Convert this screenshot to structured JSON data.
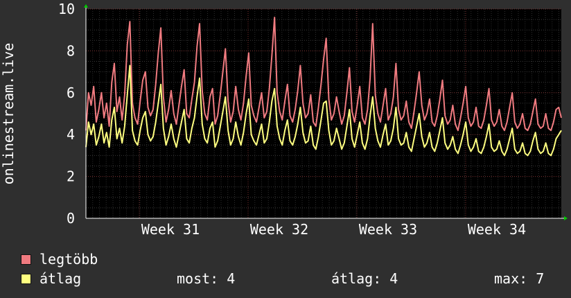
{
  "chart_data": {
    "type": "line",
    "ylabel": "onlinestream.live",
    "ylim": [
      0,
      10
    ],
    "yticks": [
      0,
      2,
      4,
      6,
      8,
      10
    ],
    "x_labels": [
      "Week 31",
      "Week 32",
      "Week 33",
      "Week 34"
    ],
    "grid": true,
    "legend_position": "bottom-left",
    "series": [
      {
        "name": "legtöbb",
        "color": "#f07b80",
        "values": [
          4.2,
          6.0,
          5.4,
          6.3,
          4.6,
          5.2,
          6.0,
          4.8,
          5.5,
          4.4,
          6.5,
          7.4,
          5.1,
          5.8,
          4.7,
          5.9,
          8.3,
          9.4,
          5.5,
          4.8,
          4.5,
          5.6,
          6.6,
          7.0,
          5.3,
          4.9,
          5.2,
          6.4,
          7.9,
          9.1,
          5.8,
          4.6,
          5.2,
          6.1,
          5.0,
          4.5,
          5.4,
          6.3,
          7.1,
          5.0,
          4.8,
          5.7,
          6.5,
          8.2,
          9.3,
          6.1,
          5.0,
          4.7,
          5.8,
          6.2,
          4.5,
          4.9,
          5.9,
          7.0,
          8.1,
          5.6,
          4.6,
          5.1,
          6.3,
          5.2,
          4.7,
          5.5,
          6.8,
          7.9,
          5.4,
          4.9,
          4.6,
          5.3,
          6.0,
          4.8,
          5.1,
          6.2,
          7.8,
          9.6,
          6.0,
          5.1,
          4.7,
          5.6,
          6.4,
          4.9,
          4.6,
          5.2,
          6.1,
          7.3,
          5.5,
          4.8,
          5.0,
          5.9,
          4.6,
          4.4,
          5.3,
          6.4,
          7.6,
          8.6,
          5.7,
          4.7,
          5.0,
          5.8,
          5.1,
          4.5,
          4.9,
          6.0,
          7.2,
          5.1,
          4.6,
          5.4,
          6.3,
          4.8,
          4.5,
          5.2,
          6.7,
          9.3,
          5.9,
          5.0,
          4.6,
          5.4,
          6.2,
          4.7,
          5.0,
          5.8,
          7.4,
          5.2,
          4.7,
          4.9,
          5.6,
          4.6,
          4.3,
          5.1,
          6.0,
          7.0,
          5.4,
          4.7,
          5.0,
          5.7,
          4.6,
          4.4,
          4.9,
          5.7,
          6.6,
          4.9,
          4.5,
          4.7,
          5.4,
          4.5,
          4.2,
          4.8,
          5.5,
          6.3,
          4.8,
          4.4,
          4.6,
          5.3,
          4.4,
          4.3,
          4.7,
          5.4,
          6.2,
          4.7,
          4.4,
          4.6,
          5.2,
          4.4,
          4.2,
          4.6,
          5.3,
          6.0,
          4.6,
          4.3,
          4.5,
          5.0,
          4.3,
          4.2,
          4.5,
          5.1,
          5.7,
          4.5,
          4.3,
          4.4,
          5.0,
          4.3,
          4.2,
          4.6,
          5.2,
          5.3,
          4.8
        ]
      },
      {
        "name": "átlag",
        "color": "#ffff80",
        "values": [
          3.4,
          4.6,
          4.0,
          4.5,
          3.5,
          3.9,
          4.5,
          3.6,
          4.1,
          3.4,
          4.7,
          5.3,
          3.8,
          4.3,
          3.6,
          4.4,
          5.9,
          7.3,
          4.2,
          3.7,
          3.5,
          4.2,
          4.8,
          5.1,
          4.0,
          3.7,
          3.9,
          4.6,
          5.5,
          6.4,
          4.3,
          3.5,
          3.9,
          4.5,
          3.8,
          3.4,
          4.0,
          4.6,
          5.2,
          3.8,
          3.6,
          4.3,
          4.8,
          5.8,
          6.7,
          4.5,
          3.8,
          3.6,
          4.3,
          4.6,
          3.4,
          3.7,
          4.4,
          5.1,
          5.8,
          4.2,
          3.5,
          3.8,
          4.6,
          3.9,
          3.5,
          4.1,
          5.0,
          5.7,
          4.0,
          3.7,
          3.5,
          4.0,
          4.5,
          3.6,
          3.8,
          4.6,
          5.6,
          6.2,
          4.4,
          3.8,
          3.5,
          4.2,
          4.7,
          3.7,
          3.5,
          3.9,
          4.5,
          5.3,
          4.1,
          3.6,
          3.7,
          4.4,
          3.5,
          3.3,
          3.9,
          4.7,
          5.5,
          5.6,
          4.2,
          3.5,
          3.7,
          4.3,
          3.8,
          3.3,
          3.6,
          4.4,
          5.2,
          3.8,
          3.4,
          4.0,
          4.6,
          3.6,
          3.3,
          3.8,
          4.9,
          5.8,
          4.3,
          3.7,
          3.4,
          4.0,
          4.5,
          3.5,
          3.7,
          4.3,
          5.3,
          3.8,
          3.5,
          3.6,
          4.1,
          3.4,
          3.2,
          3.8,
          4.4,
          5.0,
          3.9,
          3.4,
          3.6,
          4.1,
          3.4,
          3.2,
          3.6,
          4.2,
          4.8,
          3.6,
          3.3,
          3.5,
          3.9,
          3.3,
          3.1,
          3.5,
          4.0,
          4.6,
          3.5,
          3.2,
          3.4,
          3.8,
          3.2,
          3.1,
          3.4,
          3.9,
          4.5,
          3.4,
          3.2,
          3.3,
          3.7,
          3.2,
          3.0,
          3.3,
          3.8,
          4.3,
          3.3,
          3.1,
          3.2,
          3.6,
          3.1,
          3.0,
          3.2,
          3.7,
          4.1,
          3.3,
          3.1,
          3.2,
          3.6,
          3.1,
          3.0,
          3.3,
          3.8,
          4.0,
          4.2
        ]
      }
    ]
  },
  "legend": [
    {
      "label": "legtöbb",
      "color": "#f07b80"
    },
    {
      "label": "átlag",
      "color": "#ffff80"
    }
  ],
  "stats": {
    "now": "most: 4",
    "avg": "átlag: 4",
    "max": "max: 7"
  }
}
